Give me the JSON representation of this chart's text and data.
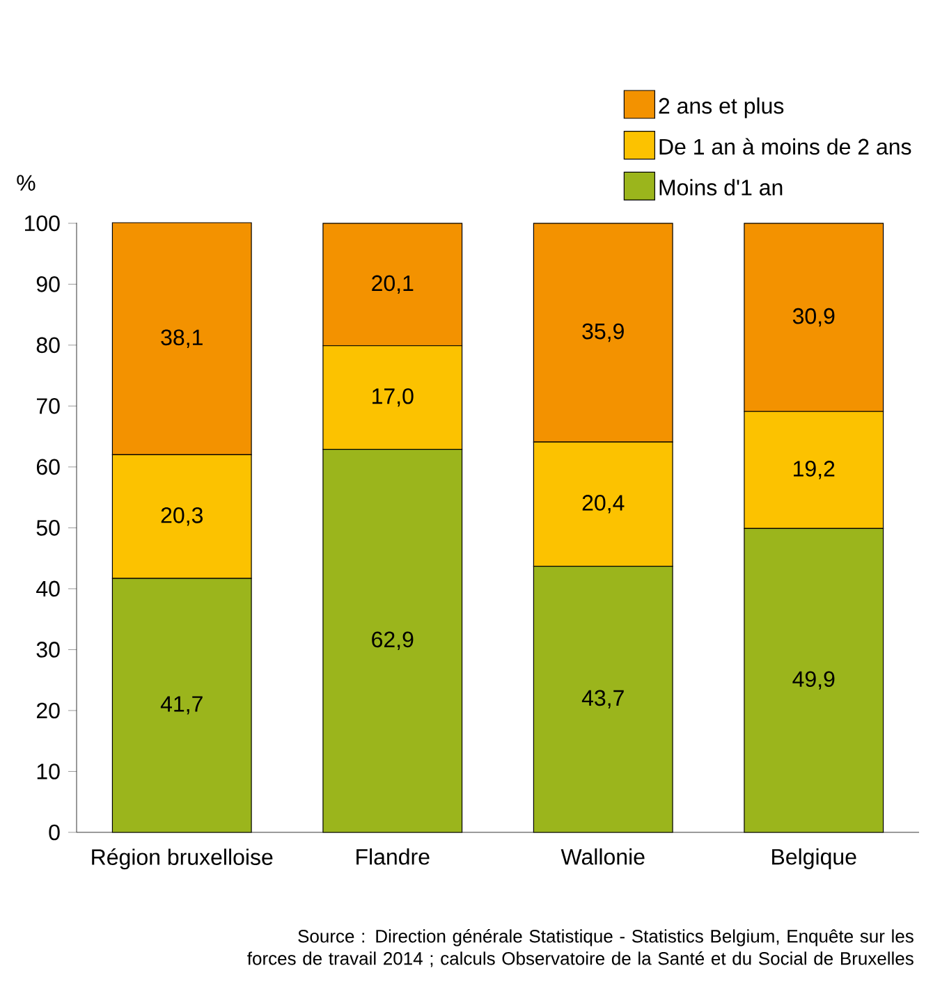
{
  "chart_data": {
    "type": "bar",
    "stacked": true,
    "ylabel": "%",
    "categories": [
      "Région bruxelloise",
      "Flandre",
      "Wallonie",
      "Belgique"
    ],
    "series": [
      {
        "name": "Moins d'1 an",
        "color": "#9bb51c",
        "values": [
          41.7,
          62.9,
          43.7,
          49.9
        ],
        "value_labels": [
          "41,7",
          "62,9",
          "43,7",
          "49,9"
        ]
      },
      {
        "name": "De 1 an à moins de 2 ans",
        "color": "#fcc200",
        "values": [
          20.3,
          17.0,
          20.4,
          19.2
        ],
        "value_labels": [
          "20,3",
          "17,0",
          "20,4",
          "19,2"
        ]
      },
      {
        "name": "2 ans et plus",
        "color": "#f39200",
        "values": [
          38.1,
          20.1,
          35.9,
          30.9
        ],
        "value_labels": [
          "38,1",
          "20,1",
          "35,9",
          "30,9"
        ]
      }
    ],
    "ylim": [
      0,
      100.1
    ],
    "yticks": [
      0,
      10,
      20,
      30,
      40,
      50,
      60,
      70,
      80,
      90,
      100
    ],
    "legend": "top right",
    "annotations": [
      "Source : Direction générale Statistique - Statistics Belgium, Enquête sur les forces de travail 2014 ; calculs Observatoire de la Santé et du Social de Bruxelles"
    ]
  }
}
